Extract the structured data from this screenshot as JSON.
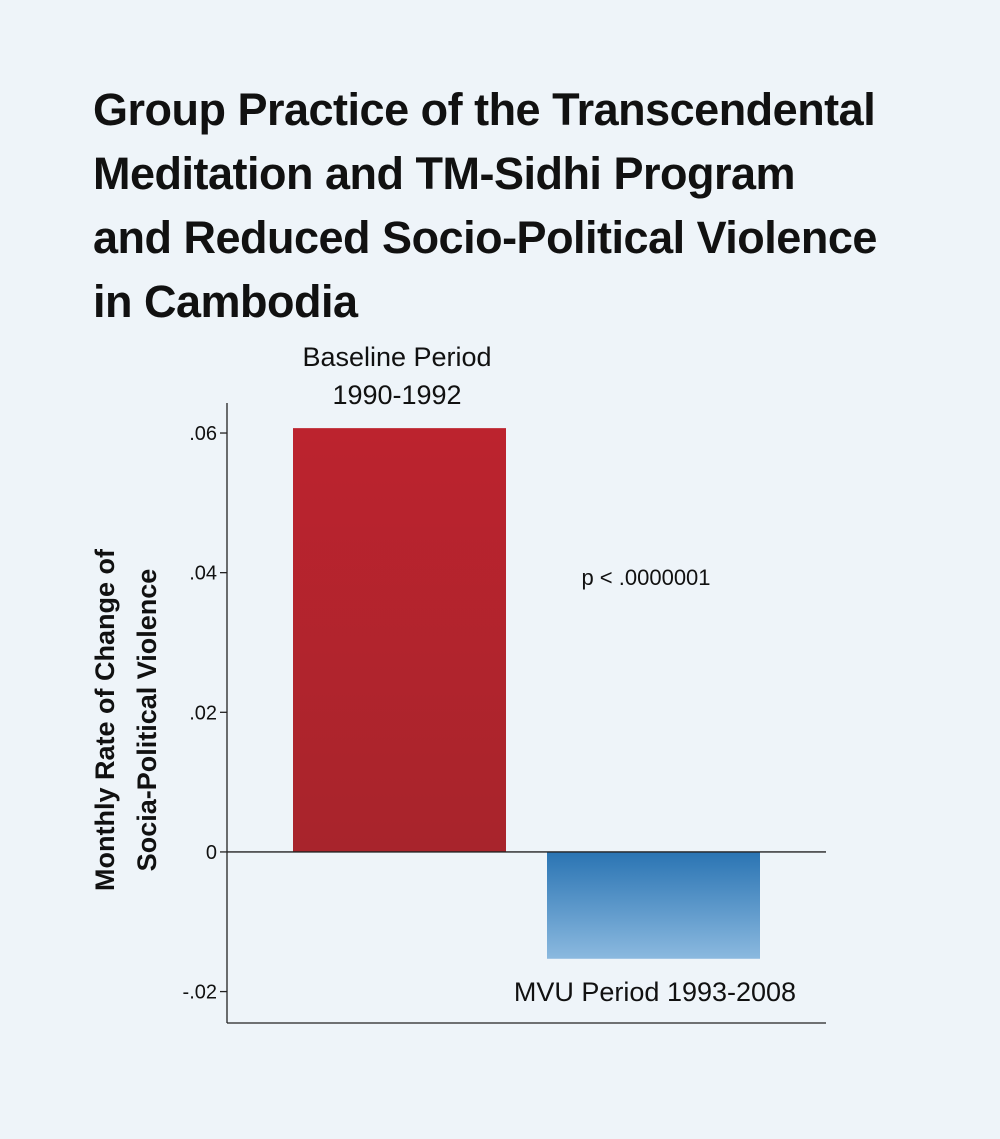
{
  "title_lines": [
    "Group Practice of the Transcendental",
    "Meditation and TM-Sidhi Program",
    "and Reduced Socio-Political Violence",
    "in Cambodia"
  ],
  "colors": {
    "background": "#eef4f9",
    "baseline_bar_top": "#bc232e",
    "baseline_bar_bottom": "#a8242c",
    "mvu_bar_top": "#2a74b3",
    "mvu_bar_bottom": "#8bb9df"
  },
  "chart_data": {
    "type": "bar",
    "title": "Group Practice of the Transcendental Meditation and TM-Sidhi Program and Reduced Socio-Political Violence in Cambodia",
    "ylabel_lines": [
      "Monthly Rate of Change of",
      "Socia-Political Violence"
    ],
    "xlabel": "",
    "ylim": [
      -0.0245,
      0.0643
    ],
    "yticks": [
      {
        "value": 0.06,
        "label": ".06"
      },
      {
        "value": 0.04,
        "label": ".04"
      },
      {
        "value": 0.02,
        "label": ".02"
      },
      {
        "value": 0,
        "label": "0"
      },
      {
        "value": -0.02,
        "label": "-.02"
      }
    ],
    "categories": [
      "Baseline Period 1990-1992",
      "MVU Period 1993-2008"
    ],
    "bar_label_lines": [
      [
        "Baseline Period",
        "1990-1992"
      ],
      [
        "MVU Period 1993-2008"
      ]
    ],
    "values": [
      0.0607,
      -0.0153
    ],
    "annotation": "p < .0000001",
    "grid": false,
    "legend": "none"
  }
}
